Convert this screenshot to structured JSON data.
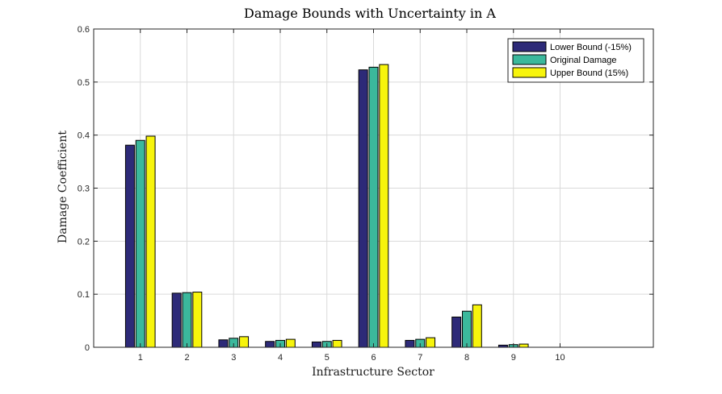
{
  "chart_data": {
    "type": "bar",
    "title": "Damage Bounds with Uncertainty in A",
    "xlabel": "Infrastructure Sector",
    "ylabel": "Damage Coefficient",
    "categories": [
      "1",
      "2",
      "3",
      "4",
      "5",
      "6",
      "7",
      "8",
      "9",
      "10"
    ],
    "x_range": [
      0,
      12
    ],
    "ylim": [
      0,
      0.6
    ],
    "y_ticks": [
      "0",
      "0.1",
      "0.2",
      "0.3",
      "0.4",
      "0.5",
      "0.6"
    ],
    "grid": true,
    "legend_position": "top-right",
    "series": [
      {
        "name": "Lower Bound (-15%)",
        "color": "#2d2a78",
        "values": [
          0.381,
          0.102,
          0.014,
          0.011,
          0.01,
          0.523,
          0.013,
          0.057,
          0.004,
          0.0
        ]
      },
      {
        "name": "Original Damage",
        "color": "#3bb89c",
        "values": [
          0.39,
          0.103,
          0.017,
          0.013,
          0.011,
          0.528,
          0.015,
          0.068,
          0.005,
          0.0
        ]
      },
      {
        "name": "Upper Bound (15%)",
        "color": "#f7f40c",
        "values": [
          0.398,
          0.104,
          0.02,
          0.015,
          0.013,
          0.533,
          0.018,
          0.08,
          0.006,
          0.0
        ]
      }
    ]
  }
}
